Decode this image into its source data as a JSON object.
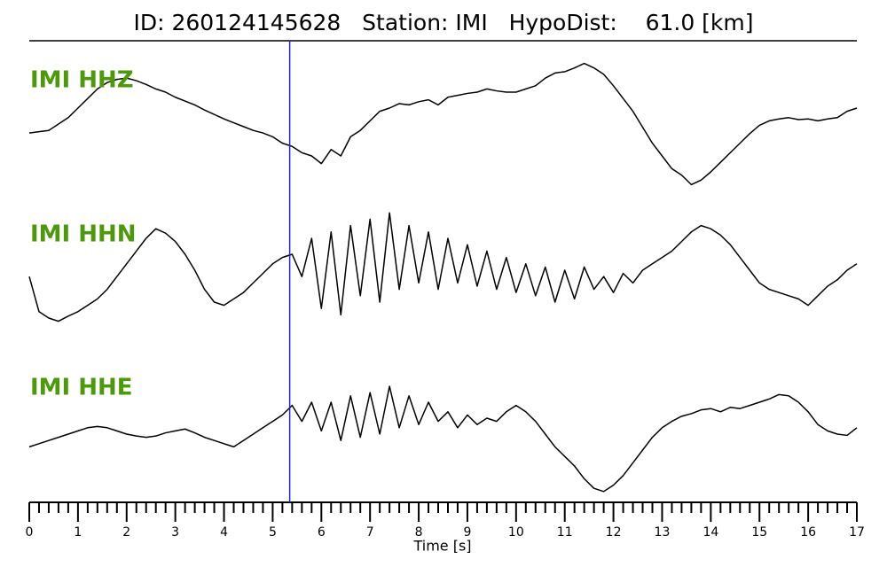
{
  "chart_data": {
    "type": "line",
    "title": "ID: 260124145628   Station: IMI   HypoDist:    61.0 [km]",
    "xlabel": "Time [s]",
    "xlim": [
      0,
      17
    ],
    "xticks": [
      0,
      1,
      2,
      3,
      4,
      5,
      6,
      7,
      8,
      9,
      10,
      11,
      12,
      13,
      14,
      15,
      16,
      17
    ],
    "xminorticks": [
      0.2,
      0.4,
      0.6,
      0.8,
      1.2,
      1.4,
      1.6,
      1.8,
      2.2,
      2.4,
      2.6,
      2.8,
      3.2,
      3.4,
      3.6,
      3.8,
      4.2,
      4.4,
      4.6,
      4.8,
      5.2,
      5.4,
      5.6,
      5.8,
      6.2,
      6.4,
      6.6,
      6.8,
      7.2,
      7.4,
      7.6,
      7.8,
      8.2,
      8.4,
      8.6,
      8.8,
      9.2,
      9.4,
      9.6,
      9.8,
      10.2,
      10.4,
      10.6,
      10.8,
      11.2,
      11.4,
      11.6,
      11.8,
      12.2,
      12.4,
      12.6,
      12.8,
      13.2,
      13.4,
      13.6,
      13.8,
      14.2,
      14.4,
      14.6,
      14.8,
      15.2,
      15.4,
      15.6,
      15.8,
      16.2,
      16.4,
      16.6,
      16.8
    ],
    "pick": {
      "x": 5.35,
      "color": "#2323d0"
    },
    "label_color": "#4c9a0a",
    "x": [
      0,
      0.2,
      0.4,
      0.6,
      0.8,
      1,
      1.2,
      1.4,
      1.6,
      1.8,
      2,
      2.2,
      2.4,
      2.6,
      2.8,
      3,
      3.2,
      3.4,
      3.6,
      3.8,
      4,
      4.2,
      4.4,
      4.6,
      4.8,
      5,
      5.2,
      5.4,
      5.6,
      5.8,
      6,
      6.2,
      6.4,
      6.6,
      6.8,
      7,
      7.2,
      7.4,
      7.6,
      7.8,
      8,
      8.2,
      8.4,
      8.6,
      8.8,
      9,
      9.2,
      9.4,
      9.6,
      9.8,
      10,
      10.2,
      10.4,
      10.6,
      10.8,
      11,
      11.2,
      11.4,
      11.6,
      11.8,
      12,
      12.2,
      12.4,
      12.6,
      12.8,
      13,
      13.2,
      13.4,
      13.6,
      13.8,
      14,
      14.2,
      14.4,
      14.6,
      14.8,
      15,
      15.2,
      15.4,
      15.6,
      15.8,
      16,
      16.2,
      16.4,
      16.6,
      16.8,
      17
    ],
    "series": [
      {
        "name": "IMI HHZ",
        "color": "#000000",
        "values": [
          -0.14,
          -0.12,
          -0.1,
          0,
          0.1,
          0.25,
          0.4,
          0.55,
          0.65,
          0.7,
          0.72,
          0.68,
          0.62,
          0.55,
          0.5,
          0.42,
          0.36,
          0.3,
          0.22,
          0.15,
          0.08,
          0.02,
          -0.04,
          -0.1,
          -0.14,
          -0.2,
          -0.3,
          -0.35,
          -0.45,
          -0.5,
          -0.62,
          -0.4,
          -0.5,
          -0.2,
          -0.1,
          0.05,
          0.2,
          0.25,
          0.32,
          0.3,
          0.35,
          0.38,
          0.3,
          0.42,
          0.45,
          0.48,
          0.5,
          0.55,
          0.52,
          0.5,
          0.5,
          0.55,
          0.6,
          0.72,
          0.8,
          0.82,
          0.88,
          0.95,
          0.88,
          0.78,
          0.6,
          0.4,
          0.2,
          -0.05,
          -0.3,
          -0.5,
          -0.7,
          -0.8,
          -0.95,
          -0.88,
          -0.75,
          -0.6,
          -0.45,
          -0.3,
          -0.15,
          -0.02,
          0.05,
          0.08,
          0.1,
          0.07,
          0.08,
          0.05,
          0.08,
          0.1,
          0.2,
          0.25
        ]
      },
      {
        "name": "IMI HHN",
        "color": "#000000",
        "values": [
          -0.1,
          -0.65,
          -0.75,
          -0.8,
          -0.72,
          -0.65,
          -0.55,
          -0.45,
          -0.3,
          -0.1,
          0.1,
          0.3,
          0.5,
          0.65,
          0.58,
          0.45,
          0.25,
          0,
          -0.3,
          -0.5,
          -0.55,
          -0.45,
          -0.35,
          -0.2,
          -0.05,
          0.1,
          0.2,
          0.25,
          -0.1,
          0.5,
          -0.6,
          0.6,
          -0.7,
          0.7,
          -0.4,
          0.8,
          -0.5,
          0.9,
          -0.3,
          0.7,
          -0.2,
          0.6,
          -0.3,
          0.5,
          -0.2,
          0.4,
          -0.25,
          0.3,
          -0.3,
          0.2,
          -0.35,
          0.1,
          -0.4,
          0.05,
          -0.5,
          0,
          -0.45,
          0.05,
          -0.3,
          -0.1,
          -0.35,
          -0.05,
          -0.2,
          0,
          0.1,
          0.2,
          0.3,
          0.45,
          0.6,
          0.7,
          0.65,
          0.55,
          0.4,
          0.2,
          0,
          -0.2,
          -0.3,
          -0.35,
          -0.4,
          -0.45,
          -0.55,
          -0.4,
          -0.25,
          -0.15,
          0,
          0.1
        ]
      },
      {
        "name": "IMI HHE",
        "color": "#000000",
        "values": [
          -0.2,
          -0.15,
          -0.1,
          -0.05,
          0,
          0.05,
          0.1,
          0.12,
          0.1,
          0.05,
          0,
          -0.03,
          -0.05,
          -0.03,
          0.02,
          0.05,
          0.08,
          0.02,
          -0.05,
          -0.1,
          -0.15,
          -0.2,
          -0.1,
          0,
          0.1,
          0.2,
          0.3,
          0.45,
          0.2,
          0.5,
          0.05,
          0.5,
          -0.1,
          0.6,
          -0.05,
          0.65,
          0,
          0.75,
          0.1,
          0.6,
          0.15,
          0.5,
          0.2,
          0.35,
          0.1,
          0.3,
          0.15,
          0.25,
          0.2,
          0.35,
          0.45,
          0.35,
          0.2,
          0,
          -0.2,
          -0.35,
          -0.5,
          -0.7,
          -0.85,
          -0.9,
          -0.8,
          -0.65,
          -0.45,
          -0.25,
          -0.05,
          0.1,
          0.2,
          0.28,
          0.32,
          0.38,
          0.4,
          0.35,
          0.42,
          0.4,
          0.45,
          0.5,
          0.55,
          0.62,
          0.6,
          0.5,
          0.35,
          0.15,
          0.05,
          0,
          -0.02,
          0.1
        ]
      }
    ]
  }
}
